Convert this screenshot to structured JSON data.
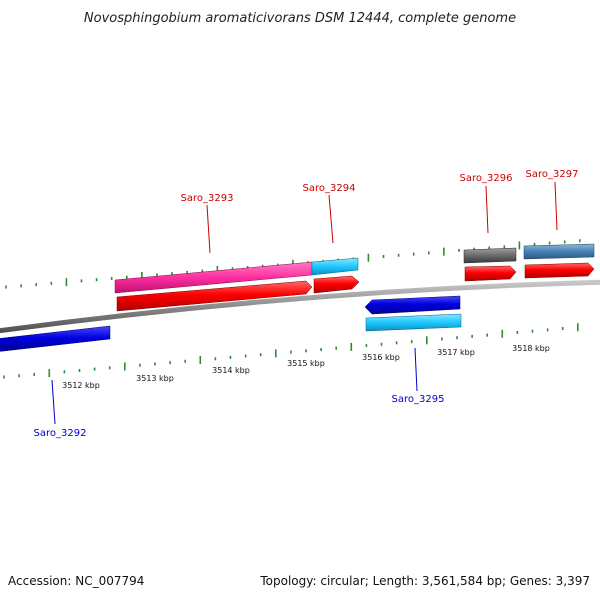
{
  "title": "Novosphingobium aromaticivorans DSM 12444, complete genome",
  "footer": {
    "accession": "Accession: NC_007794",
    "summary": "Topology: circular; Length: 3,561,584 bp; Genes: 3,397"
  },
  "colors": {
    "backbone": "#8a8a8a",
    "tick": "#2e8b2e",
    "label_forward": "#cc0000",
    "label_reverse": "#0000cc",
    "gene_forward_cds": "#ff0000",
    "gene_reverse_cds": "#0000e0",
    "gene_magenta": "#ff2fa0",
    "gene_cyan": "#1ec8ff",
    "gene_gray": "#6a6a6a",
    "gene_steel": "#4682b4"
  },
  "ticks": {
    "labels": [
      "3512 kbp",
      "3513 kbp",
      "3514 kbp",
      "3515 kbp",
      "3516 kbp",
      "3517 kbp",
      "3518 kbp"
    ]
  },
  "genes": [
    {
      "name": "Saro_3292",
      "strand": "reverse"
    },
    {
      "name": "Saro_3293",
      "strand": "forward"
    },
    {
      "name": "Saro_3294",
      "strand": "forward"
    },
    {
      "name": "Saro_3295",
      "strand": "reverse"
    },
    {
      "name": "Saro_3296",
      "strand": "forward"
    },
    {
      "name": "Saro_3297",
      "strand": "forward"
    }
  ]
}
